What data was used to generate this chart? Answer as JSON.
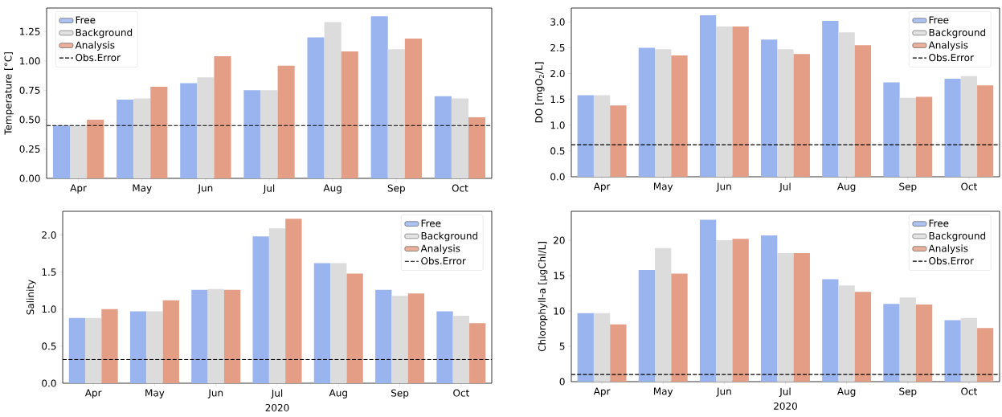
{
  "chart_data": [
    {
      "type": "bar",
      "ylabel": "Temperature [°C]",
      "categories": [
        "Apr",
        "May",
        "Jun",
        "Jul",
        "Aug",
        "Sep",
        "Oct"
      ],
      "series": [
        {
          "name": "Free",
          "color": "#9ab4ef",
          "values": [
            0.45,
            0.67,
            0.81,
            0.75,
            1.2,
            1.38,
            0.7
          ]
        },
        {
          "name": "Background",
          "color": "#dcdcdc",
          "values": [
            0.45,
            0.68,
            0.86,
            0.75,
            1.33,
            1.1,
            0.68
          ]
        },
        {
          "name": "Analysis",
          "color": "#e39e85",
          "values": [
            0.5,
            0.78,
            1.04,
            0.96,
            1.08,
            1.19,
            0.52
          ]
        }
      ],
      "ref_lines": [
        {
          "axis": "y",
          "value": 0.45,
          "label": "Obs.Error",
          "color": "#000000",
          "line_style": "dashed"
        }
      ],
      "ylim": [
        0,
        1.45
      ],
      "yticks": [
        {
          "value": 0,
          "label": "0.00"
        },
        0.25,
        {
          "value": 0.5,
          "label": "0.50"
        },
        0.75,
        {
          "value": 1,
          "label": "1.00"
        },
        1.25
      ],
      "legend": "top left"
    },
    {
      "type": "bar",
      "ylabel": "DO [mgO$_{2}$/L]",
      "categories": [
        "Apr",
        "May",
        "Jun",
        "Jul",
        "Aug",
        "Sep",
        "Oct"
      ],
      "series": [
        {
          "name": "Free",
          "color": "#9ab4ef",
          "values": [
            1.58,
            2.5,
            3.13,
            2.66,
            3.02,
            1.83,
            1.9
          ]
        },
        {
          "name": "Background",
          "color": "#dcdcdc",
          "values": [
            1.58,
            2.47,
            2.91,
            2.47,
            2.8,
            1.53,
            1.95
          ]
        },
        {
          "name": "Analysis",
          "color": "#e39e85",
          "values": [
            1.38,
            2.35,
            2.91,
            2.38,
            2.55,
            1.55,
            1.77
          ]
        }
      ],
      "ref_lines": [
        {
          "axis": "y",
          "value": 0.62,
          "label": "Obs.Error",
          "color": "#000000",
          "line_style": "dashed"
        }
      ],
      "ylim": [
        0,
        3.27
      ],
      "yticks": [
        {
          "value": 0,
          "label": "0.0"
        },
        0.5,
        {
          "value": 1,
          "label": "1.0"
        },
        1.5,
        {
          "value": 2,
          "label": "2.0"
        },
        2.5,
        {
          "value": 3,
          "label": "3.0"
        }
      ],
      "legend": "top right"
    },
    {
      "type": "bar",
      "ylabel": "Salinity",
      "xlabel": "2020",
      "categories": [
        "Apr",
        "May",
        "Jun",
        "Jul",
        "Aug",
        "Sep",
        "Oct"
      ],
      "series": [
        {
          "name": "Free",
          "color": "#9ab4ef",
          "values": [
            0.88,
            0.97,
            1.26,
            1.98,
            1.62,
            1.26,
            0.97
          ]
        },
        {
          "name": "Background",
          "color": "#dcdcdc",
          "values": [
            0.88,
            0.97,
            1.27,
            2.09,
            1.62,
            1.18,
            0.91
          ]
        },
        {
          "name": "Analysis",
          "color": "#e39e85",
          "values": [
            1.0,
            1.12,
            1.26,
            2.22,
            1.48,
            1.21,
            0.81
          ]
        }
      ],
      "ref_lines": [
        {
          "axis": "y",
          "value": 0.32,
          "label": "Obs.Error",
          "color": "#000000",
          "line_style": "dashed"
        }
      ],
      "ylim": [
        0,
        2.32
      ],
      "yticks": [
        {
          "value": 0,
          "label": "0.0"
        },
        0.5,
        {
          "value": 1,
          "label": "1.0"
        },
        1.5,
        {
          "value": 2,
          "label": "2.0"
        }
      ],
      "legend": "top right"
    },
    {
      "type": "bar",
      "ylabel": "Chlorophyll-a [μgChl/L]",
      "xlabel": "2020",
      "categories": [
        "Apr",
        "May",
        "Jun",
        "Jul",
        "Aug",
        "Sep",
        "Oct"
      ],
      "series": [
        {
          "name": "Free",
          "color": "#9ab4ef",
          "values": [
            9.7,
            15.8,
            22.9,
            20.7,
            14.5,
            11.0,
            8.7
          ]
        },
        {
          "name": "Background",
          "color": "#dcdcdc",
          "values": [
            9.7,
            18.9,
            20.0,
            18.2,
            13.6,
            11.9,
            9.0
          ]
        },
        {
          "name": "Analysis",
          "color": "#e39e85",
          "values": [
            8.1,
            15.3,
            20.2,
            18.2,
            12.7,
            10.9,
            7.6
          ]
        }
      ],
      "ref_lines": [
        {
          "axis": "y",
          "value": 1.0,
          "label": "Obs.Error",
          "color": "#000000",
          "line_style": "dashed"
        }
      ],
      "ylim": [
        0,
        24.1
      ],
      "yticks": [
        0,
        5,
        10,
        15,
        20
      ],
      "legend": "top right"
    }
  ]
}
